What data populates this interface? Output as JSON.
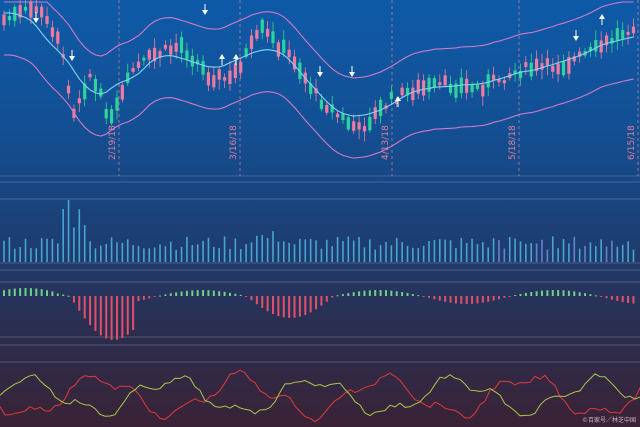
{
  "chart_data": {
    "type": "candlestick",
    "dates": [
      "2/19/18",
      "3/16/18",
      "4/13/18",
      "5/18/18",
      "6/15/18"
    ],
    "date_positions": [
      18,
      47,
      78,
      103,
      128
    ],
    "panels": [
      "price",
      "volume",
      "macd",
      "kdj"
    ],
    "colors": {
      "up": "#2fd39a",
      "down": "#f07aa0",
      "band": "#d07ac6",
      "mid": "#7fd6ee",
      "volume": "#4fb6e6",
      "macd_pos": "#6fd08a",
      "macd_neg": "#e0506a",
      "line_k": "#e03a3a",
      "line_d": "#a8c84a",
      "date_line": "#e47f9a"
    },
    "watermark": "©百家号／林芝中国"
  }
}
